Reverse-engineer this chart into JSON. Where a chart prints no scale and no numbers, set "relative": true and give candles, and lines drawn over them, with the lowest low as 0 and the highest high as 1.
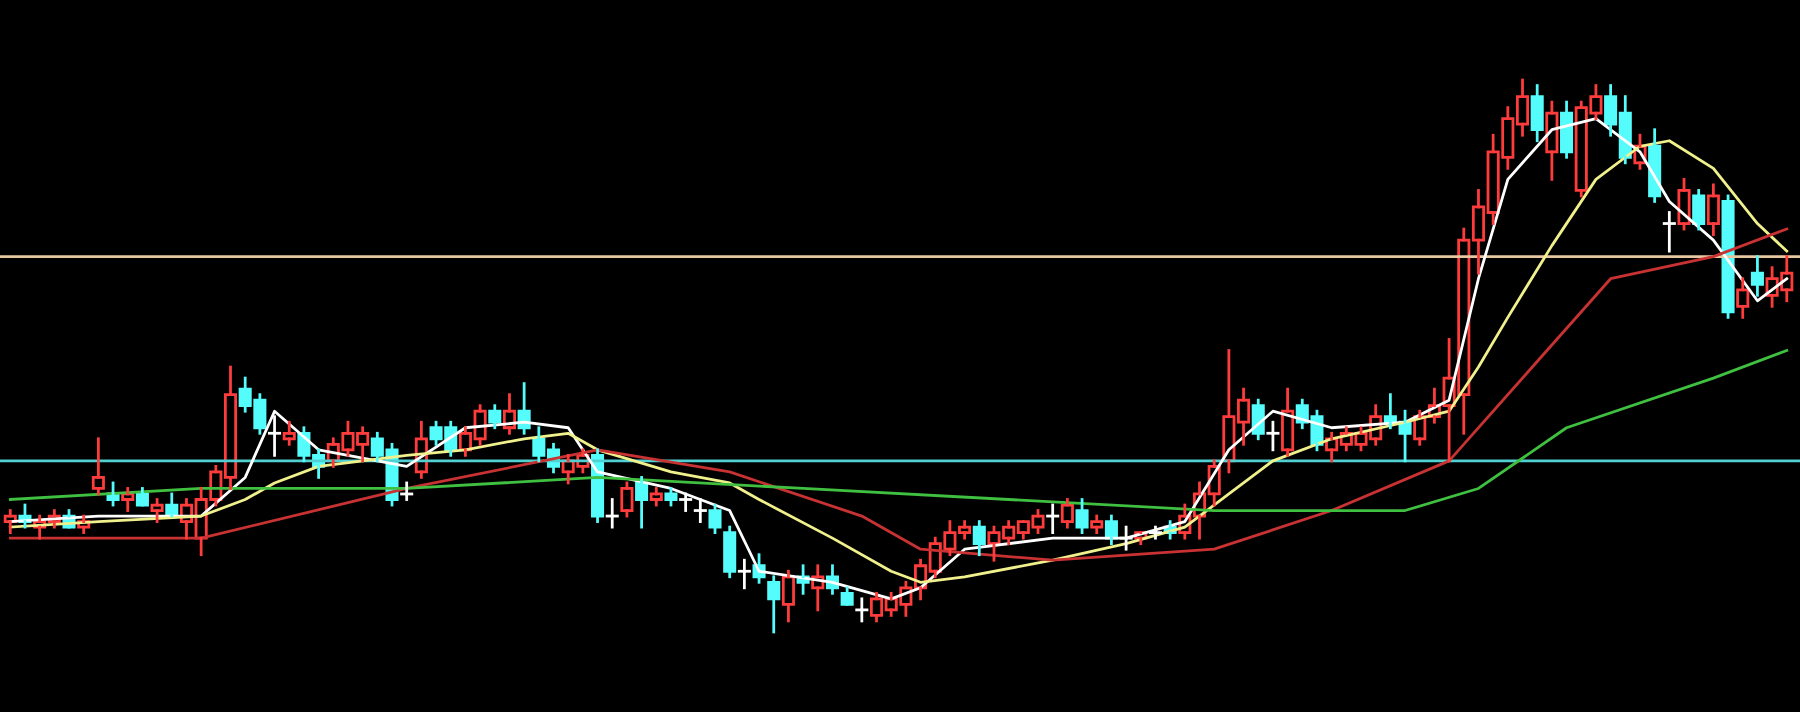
{
  "chart_data": {
    "type": "candlestick",
    "relative": true,
    "categories": [
      null,
      null,
      null,
      null,
      null,
      null,
      null,
      null,
      null,
      null,
      null,
      null,
      null,
      null,
      null,
      null,
      null,
      null,
      null,
      null,
      null,
      null,
      null,
      null,
      null,
      null,
      null,
      null,
      null,
      null,
      null,
      null,
      null,
      null,
      null,
      null,
      null,
      null,
      null,
      null,
      null,
      null,
      null,
      null,
      null,
      null,
      null,
      null,
      null,
      null,
      null,
      null,
      null,
      null,
      null,
      null,
      null,
      null,
      null,
      null,
      null,
      null,
      null,
      null,
      null,
      null,
      null,
      null,
      null,
      null,
      null,
      null,
      null,
      null,
      null,
      null,
      null,
      null,
      null,
      null,
      null,
      null,
      null,
      null,
      null,
      null,
      null,
      null,
      null,
      null,
      null,
      null,
      null,
      null,
      null,
      null,
      null,
      null,
      null,
      null,
      null,
      null,
      null,
      null,
      null,
      null,
      null,
      null,
      null,
      null,
      null,
      null,
      null,
      null,
      null,
      null,
      null,
      null,
      null,
      null,
      null,
      null
    ],
    "ohlc": [
      [
        0.2,
        0.22,
        0.18,
        0.21
      ],
      [
        0.21,
        0.23,
        0.19,
        0.2
      ],
      [
        0.19,
        0.21,
        0.17,
        0.2
      ],
      [
        0.2,
        0.22,
        0.19,
        0.21
      ],
      [
        0.21,
        0.22,
        0.19,
        0.19
      ],
      [
        0.19,
        0.21,
        0.18,
        0.2
      ],
      [
        0.26,
        0.35,
        0.25,
        0.28
      ],
      [
        0.25,
        0.27,
        0.23,
        0.24
      ],
      [
        0.24,
        0.26,
        0.22,
        0.25
      ],
      [
        0.25,
        0.26,
        0.23,
        0.23
      ],
      [
        0.22,
        0.24,
        0.2,
        0.23
      ],
      [
        0.23,
        0.25,
        0.21,
        0.21
      ],
      [
        0.2,
        0.24,
        0.17,
        0.23
      ],
      [
        0.17,
        0.26,
        0.14,
        0.24
      ],
      [
        0.24,
        0.3,
        0.23,
        0.29
      ],
      [
        0.28,
        0.48,
        0.26,
        0.43
      ],
      [
        0.44,
        0.46,
        0.4,
        0.41
      ],
      [
        0.42,
        0.43,
        0.36,
        0.37
      ],
      [
        0.36,
        0.39,
        0.32,
        0.36
      ],
      [
        0.35,
        0.38,
        0.34,
        0.36
      ],
      [
        0.36,
        0.37,
        0.31,
        0.32
      ],
      [
        0.32,
        0.33,
        0.28,
        0.3
      ],
      [
        0.31,
        0.35,
        0.3,
        0.34
      ],
      [
        0.33,
        0.38,
        0.32,
        0.36
      ],
      [
        0.34,
        0.37,
        0.31,
        0.36
      ],
      [
        0.35,
        0.36,
        0.31,
        0.32
      ],
      [
        0.33,
        0.34,
        0.23,
        0.24
      ],
      [
        0.25,
        0.27,
        0.24,
        0.25
      ],
      [
        0.29,
        0.38,
        0.28,
        0.35
      ],
      [
        0.37,
        0.38,
        0.34,
        0.35
      ],
      [
        0.37,
        0.38,
        0.32,
        0.33
      ],
      [
        0.33,
        0.37,
        0.32,
        0.36
      ],
      [
        0.35,
        0.41,
        0.34,
        0.4
      ],
      [
        0.4,
        0.41,
        0.37,
        0.38
      ],
      [
        0.37,
        0.43,
        0.36,
        0.4
      ],
      [
        0.4,
        0.45,
        0.36,
        0.37
      ],
      [
        0.35,
        0.37,
        0.31,
        0.32
      ],
      [
        0.33,
        0.34,
        0.29,
        0.3
      ],
      [
        0.29,
        0.32,
        0.27,
        0.31
      ],
      [
        0.3,
        0.33,
        0.29,
        0.32
      ],
      [
        0.32,
        0.33,
        0.2,
        0.21
      ],
      [
        0.21,
        0.24,
        0.19,
        0.21
      ],
      [
        0.22,
        0.27,
        0.21,
        0.26
      ],
      [
        0.27,
        0.28,
        0.19,
        0.24
      ],
      [
        0.24,
        0.26,
        0.23,
        0.25
      ],
      [
        0.25,
        0.26,
        0.23,
        0.24
      ],
      [
        0.24,
        0.25,
        0.22,
        0.24
      ],
      [
        0.22,
        0.24,
        0.2,
        0.22
      ],
      [
        0.22,
        0.23,
        0.18,
        0.19
      ],
      [
        0.18,
        0.19,
        0.1,
        0.11
      ],
      [
        0.11,
        0.13,
        0.08,
        0.11
      ],
      [
        0.12,
        0.14,
        0.09,
        0.1
      ],
      [
        0.09,
        0.1,
        0.0,
        0.06
      ],
      [
        0.05,
        0.11,
        0.02,
        0.1
      ],
      [
        0.1,
        0.12,
        0.07,
        0.09
      ],
      [
        0.08,
        0.12,
        0.04,
        0.1
      ],
      [
        0.1,
        0.12,
        0.07,
        0.08
      ],
      [
        0.07,
        0.08,
        0.05,
        0.05
      ],
      [
        0.04,
        0.06,
        0.02,
        0.04
      ],
      [
        0.03,
        0.07,
        0.02,
        0.06
      ],
      [
        0.04,
        0.07,
        0.03,
        0.06
      ],
      [
        0.05,
        0.09,
        0.03,
        0.08
      ],
      [
        0.08,
        0.13,
        0.06,
        0.12
      ],
      [
        0.11,
        0.17,
        0.1,
        0.16
      ],
      [
        0.15,
        0.2,
        0.14,
        0.18
      ],
      [
        0.18,
        0.2,
        0.17,
        0.19
      ],
      [
        0.19,
        0.2,
        0.14,
        0.16
      ],
      [
        0.16,
        0.19,
        0.13,
        0.18
      ],
      [
        0.17,
        0.2,
        0.16,
        0.19
      ],
      [
        0.18,
        0.2,
        0.17,
        0.2
      ],
      [
        0.19,
        0.22,
        0.18,
        0.21
      ],
      [
        0.21,
        0.23,
        0.18,
        0.21
      ],
      [
        0.2,
        0.24,
        0.19,
        0.23
      ],
      [
        0.22,
        0.24,
        0.18,
        0.19
      ],
      [
        0.19,
        0.21,
        0.18,
        0.2
      ],
      [
        0.2,
        0.21,
        0.16,
        0.17
      ],
      [
        0.17,
        0.19,
        0.15,
        0.17
      ],
      [
        0.17,
        0.18,
        0.16,
        0.18
      ],
      [
        0.18,
        0.19,
        0.17,
        0.18
      ],
      [
        0.19,
        0.2,
        0.17,
        0.18
      ],
      [
        0.18,
        0.23,
        0.17,
        0.21
      ],
      [
        0.21,
        0.27,
        0.17,
        0.25
      ],
      [
        0.25,
        0.31,
        0.23,
        0.3
      ],
      [
        0.31,
        0.51,
        0.29,
        0.39
      ],
      [
        0.38,
        0.44,
        0.34,
        0.42
      ],
      [
        0.41,
        0.42,
        0.35,
        0.36
      ],
      [
        0.36,
        0.38,
        0.33,
        0.36
      ],
      [
        0.33,
        0.44,
        0.32,
        0.4
      ],
      [
        0.41,
        0.42,
        0.37,
        0.38
      ],
      [
        0.39,
        0.4,
        0.33,
        0.34
      ],
      [
        0.33,
        0.36,
        0.31,
        0.35
      ],
      [
        0.34,
        0.37,
        0.33,
        0.36
      ],
      [
        0.34,
        0.37,
        0.33,
        0.36
      ],
      [
        0.35,
        0.41,
        0.34,
        0.39
      ],
      [
        0.39,
        0.43,
        0.37,
        0.38
      ],
      [
        0.38,
        0.4,
        0.31,
        0.36
      ],
      [
        0.35,
        0.4,
        0.34,
        0.39
      ],
      [
        0.39,
        0.44,
        0.38,
        0.41
      ],
      [
        0.41,
        0.53,
        0.31,
        0.46
      ],
      [
        0.43,
        0.73,
        0.36,
        0.71
      ],
      [
        0.71,
        0.8,
        0.65,
        0.77
      ],
      [
        0.76,
        0.9,
        0.74,
        0.87
      ],
      [
        0.86,
        0.95,
        0.84,
        0.93
      ],
      [
        0.92,
        1.0,
        0.9,
        0.97
      ],
      [
        0.97,
        0.99,
        0.89,
        0.91
      ],
      [
        0.87,
        0.96,
        0.82,
        0.94
      ],
      [
        0.94,
        0.96,
        0.86,
        0.87
      ],
      [
        0.8,
        0.96,
        0.79,
        0.95
      ],
      [
        0.94,
        0.99,
        0.93,
        0.97
      ],
      [
        0.97,
        0.99,
        0.9,
        0.92
      ],
      [
        0.94,
        0.97,
        0.85,
        0.86
      ],
      [
        0.85,
        0.9,
        0.84,
        0.88
      ],
      [
        0.88,
        0.91,
        0.78,
        0.79
      ],
      [
        0.74,
        0.76,
        0.69,
        0.74
      ],
      [
        0.74,
        0.82,
        0.73,
        0.8
      ],
      [
        0.79,
        0.8,
        0.73,
        0.74
      ],
      [
        0.74,
        0.81,
        0.72,
        0.79
      ],
      [
        0.78,
        0.79,
        0.57,
        0.58
      ],
      [
        0.59,
        0.64,
        0.57,
        0.62
      ],
      [
        0.65,
        0.68,
        0.61,
        0.63
      ],
      [
        0.61,
        0.66,
        0.59,
        0.64
      ],
      [
        0.62,
        0.68,
        0.6,
        0.65
      ]
    ],
    "series": [
      {
        "type": "line",
        "color": "#ffffff",
        "values": [
          0.2,
          null,
          null,
          null,
          null,
          null,
          0.21,
          null,
          null,
          null,
          null,
          null,
          null,
          0.21,
          null,
          null,
          0.28,
          null,
          0.4,
          null,
          null,
          0.33,
          null,
          null,
          null,
          null,
          null,
          0.3,
          null,
          null,
          null,
          0.37,
          null,
          null,
          null,
          0.38,
          null,
          null,
          0.37,
          null,
          0.29,
          null,
          null,
          null,
          null,
          0.26,
          null,
          null,
          null,
          0.22,
          null,
          0.11,
          null,
          null,
          null,
          null,
          0.09,
          null,
          null,
          null,
          0.06,
          null,
          0.08,
          null,
          null,
          0.15,
          null,
          null,
          null,
          null,
          null,
          0.17,
          null,
          null,
          null,
          null,
          0.17,
          null,
          null,
          null,
          0.2,
          null,
          null,
          0.33,
          null,
          null,
          0.4,
          null,
          null,
          null,
          0.37,
          null,
          null,
          null,
          null,
          0.38,
          null,
          null,
          0.42,
          null,
          0.64,
          null,
          0.82,
          null,
          null,
          0.91,
          null,
          null,
          0.93,
          null,
          null,
          0.87,
          null,
          0.78,
          null,
          null,
          0.71,
          null,
          null,
          0.6,
          null,
          0.64
        ]
      },
      {
        "type": "line",
        "color": "#f0f08c",
        "values": [
          0.19,
          null,
          null,
          null,
          null,
          null,
          0.2,
          null,
          null,
          null,
          null,
          null,
          null,
          0.21,
          null,
          null,
          0.24,
          null,
          0.27,
          null,
          null,
          0.3,
          null,
          null,
          null,
          null,
          null,
          0.32,
          null,
          null,
          null,
          0.33,
          null,
          null,
          null,
          0.35,
          null,
          null,
          0.36,
          null,
          0.33,
          null,
          null,
          null,
          null,
          0.29,
          null,
          null,
          null,
          0.27,
          null,
          0.24,
          null,
          null,
          null,
          null,
          0.17,
          null,
          null,
          null,
          0.11,
          null,
          0.09,
          null,
          null,
          0.1,
          null,
          null,
          null,
          null,
          null,
          0.13,
          null,
          null,
          null,
          null,
          0.16,
          null,
          null,
          null,
          0.19,
          null,
          null,
          0.25,
          null,
          null,
          0.31,
          null,
          null,
          null,
          0.35,
          null,
          null,
          null,
          null,
          0.38,
          null,
          null,
          0.4,
          null,
          0.48,
          null,
          0.57,
          null,
          null,
          0.7,
          null,
          null,
          0.82,
          null,
          null,
          0.88,
          null,
          0.89,
          null,
          null,
          0.84,
          null,
          null,
          0.74,
          null,
          0.69
        ]
      },
      {
        "type": "line",
        "color": "#c83232",
        "values": [
          0.17,
          null,
          null,
          null,
          null,
          null,
          null,
          null,
          null,
          null,
          null,
          null,
          null,
          0.17,
          null,
          null,
          null,
          null,
          null,
          null,
          null,
          null,
          null,
          null,
          null,
          null,
          null,
          0.26,
          null,
          null,
          null,
          null,
          null,
          null,
          null,
          null,
          null,
          null,
          null,
          null,
          0.33,
          null,
          null,
          null,
          null,
          null,
          null,
          null,
          null,
          0.29,
          null,
          null,
          null,
          null,
          null,
          null,
          null,
          null,
          0.21,
          null,
          null,
          null,
          0.15,
          null,
          null,
          null,
          null,
          null,
          null,
          null,
          null,
          0.13,
          null,
          null,
          null,
          null,
          null,
          null,
          null,
          null,
          null,
          null,
          0.15,
          null,
          null,
          null,
          null,
          null,
          null,
          null,
          0.22,
          null,
          null,
          null,
          null,
          null,
          null,
          null,
          0.31,
          null,
          null,
          null,
          null,
          null,
          0.49,
          null,
          null,
          null,
          null,
          0.64,
          null,
          null,
          null,
          null,
          null,
          null,
          0.68,
          null,
          null,
          null,
          null,
          0.73
        ]
      },
      {
        "type": "line",
        "color": "#40c040",
        "values": [
          0.24,
          null,
          null,
          null,
          null,
          null,
          null,
          null,
          null,
          null,
          null,
          null,
          null,
          0.26,
          null,
          null,
          null,
          null,
          null,
          null,
          null,
          null,
          null,
          null,
          null,
          null,
          null,
          0.26,
          null,
          null,
          null,
          null,
          null,
          null,
          null,
          null,
          null,
          null,
          null,
          null,
          0.28,
          null,
          null,
          null,
          null,
          null,
          null,
          null,
          null,
          null,
          null,
          null,
          null,
          null,
          0.26,
          null,
          null,
          null,
          null,
          null,
          null,
          null,
          null,
          null,
          null,
          null,
          null,
          null,
          0.24,
          null,
          null,
          null,
          null,
          null,
          null,
          null,
          null,
          null,
          null,
          null,
          null,
          null,
          0.22,
          null,
          null,
          null,
          null,
          null,
          null,
          null,
          null,
          null,
          null,
          null,
          null,
          0.22,
          null,
          null,
          null,
          null,
          0.26,
          null,
          null,
          null,
          null,
          null,
          0.37,
          null,
          null,
          null,
          null,
          null,
          null,
          null,
          null,
          null,
          0.46,
          null,
          null,
          null,
          null,
          0.51
        ]
      }
    ],
    "ref_lines": [
      {
        "axis": "y",
        "value": 0.31,
        "color": "#50d0d0"
      },
      {
        "axis": "y",
        "value": 0.68,
        "color": "#e8c8a0"
      }
    ]
  }
}
